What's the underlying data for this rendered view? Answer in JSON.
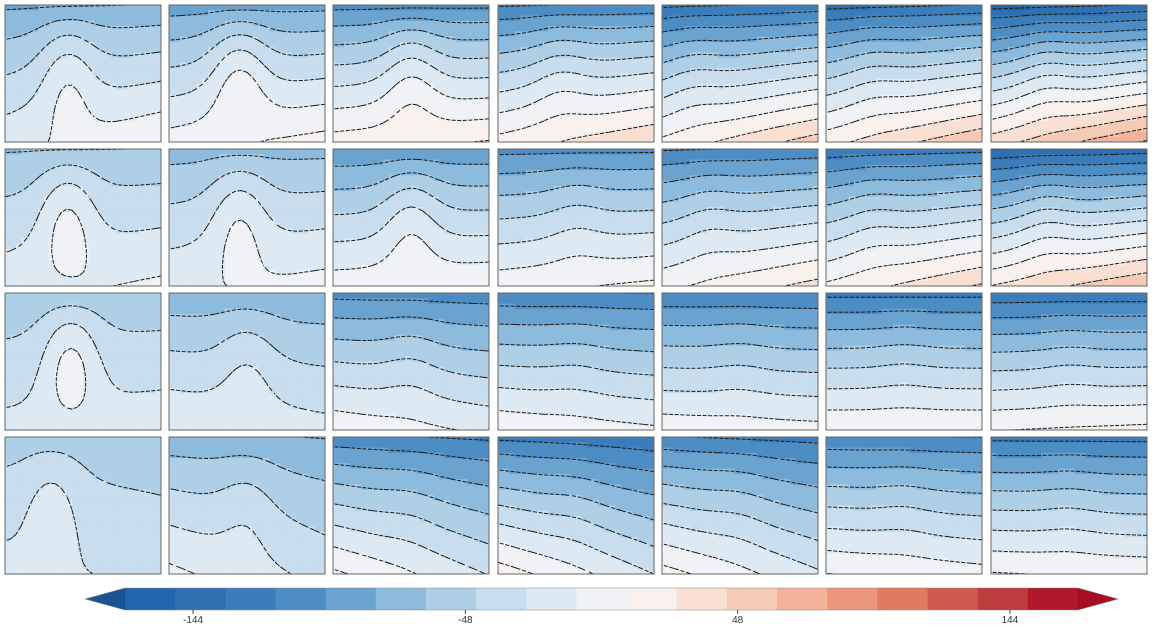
{
  "chart_data": {
    "type": "heatmap",
    "description_grid": {
      "rows": 4,
      "cols": 7
    },
    "panels_field_range": [
      -168,
      168
    ],
    "contour_style": "dashed-black",
    "colorbar": {
      "orientation": "horizontal",
      "extend": "both",
      "range": [
        -192,
        192
      ],
      "step": 24,
      "tick_values": [
        -144,
        -48,
        48,
        144
      ],
      "tick_labels": [
        "-144",
        "-48",
        "48",
        "144"
      ],
      "colors": [
        "#2166ac",
        "#3070b1",
        "#3a7dba",
        "#4d8dc4",
        "#6aa2d0",
        "#8dbbdd",
        "#aecfe6",
        "#c8dded",
        "#dde9f3",
        "#f0f2f5",
        "#f8f1ee",
        "#f9e0d3",
        "#f6cbb6",
        "#f2b39a",
        "#ec967b",
        "#e07b62",
        "#d05a4e",
        "#bd3c3d",
        "#b2182b"
      ],
      "extend_colors": {
        "low": "#1a5296",
        "high": "#a50f25"
      }
    },
    "panels": [
      [
        {
          "top": -50,
          "bottom": 55,
          "slope": 0.2,
          "dip": 35,
          "dip_pos": 0.4
        },
        {
          "top": -60,
          "bottom": 70,
          "slope": 0.15,
          "dip": 40,
          "dip_pos": 0.45
        },
        {
          "top": -80,
          "bottom": 90,
          "slope": 0.1,
          "dip": 30,
          "dip_pos": 0.5
        },
        {
          "top": -95,
          "bottom": 100,
          "slope": 0.25,
          "dip": 15,
          "dip_pos": 0.4
        },
        {
          "top": -120,
          "bottom": 105,
          "slope": 0.35,
          "dip": 10,
          "dip_pos": 0.2
        },
        {
          "top": -125,
          "bottom": 115,
          "slope": 0.35,
          "dip": 10,
          "dip_pos": 0.3
        },
        {
          "top": -150,
          "bottom": 140,
          "slope": 0.4,
          "dip": 15,
          "dip_pos": 0.35
        }
      ],
      [
        {
          "top": -25,
          "bottom": 45,
          "slope": 0.1,
          "dip": 40,
          "dip_pos": 0.4
        },
        {
          "top": -35,
          "bottom": 50,
          "slope": 0.1,
          "dip": 35,
          "dip_pos": 0.45
        },
        {
          "top": -70,
          "bottom": 65,
          "slope": 0.05,
          "dip": 30,
          "dip_pos": 0.5
        },
        {
          "top": -80,
          "bottom": 70,
          "slope": 0.1,
          "dip": 10,
          "dip_pos": 0.5
        },
        {
          "top": -95,
          "bottom": 85,
          "slope": 0.25,
          "dip": 10,
          "dip_pos": 0.3
        },
        {
          "top": -110,
          "bottom": 100,
          "slope": 0.3,
          "dip": 10,
          "dip_pos": 0.3
        },
        {
          "top": -140,
          "bottom": 120,
          "slope": 0.3,
          "dip": 15,
          "dip_pos": 0.35
        }
      ],
      [
        {
          "top": -20,
          "bottom": 35,
          "slope": 0.05,
          "dip": 45,
          "dip_pos": 0.42
        },
        {
          "top": -45,
          "bottom": 40,
          "slope": -0.1,
          "dip": 20,
          "dip_pos": 0.5
        },
        {
          "top": -85,
          "bottom": 55,
          "slope": -0.15,
          "dip": 10,
          "dip_pos": 0.5
        },
        {
          "top": -95,
          "bottom": 60,
          "slope": -0.1,
          "dip": 5,
          "dip_pos": 0.5
        },
        {
          "top": -95,
          "bottom": 60,
          "slope": -0.05,
          "dip": 5,
          "dip_pos": 0.5
        },
        {
          "top": -105,
          "bottom": 70,
          "slope": 0.0,
          "dip": 5,
          "dip_pos": 0.5
        },
        {
          "top": -115,
          "bottom": 75,
          "slope": 0.05,
          "dip": 5,
          "dip_pos": 0.5
        }
      ],
      [
        {
          "top": -15,
          "bottom": 25,
          "slope": -0.1,
          "dip": 25,
          "dip_pos": 0.3
        },
        {
          "top": -45,
          "bottom": 35,
          "slope": -0.25,
          "dip": 15,
          "dip_pos": 0.5
        },
        {
          "top": -95,
          "bottom": 50,
          "slope": -0.35,
          "dip": 5,
          "dip_pos": 0.5
        },
        {
          "top": -110,
          "bottom": 55,
          "slope": -0.4,
          "dip": 5,
          "dip_pos": 0.5
        },
        {
          "top": -100,
          "bottom": 55,
          "slope": -0.35,
          "dip": 5,
          "dip_pos": 0.5
        },
        {
          "top": -95,
          "bottom": 65,
          "slope": -0.1,
          "dip": 5,
          "dip_pos": 0.5
        },
        {
          "top": -105,
          "bottom": 70,
          "slope": -0.05,
          "dip": 5,
          "dip_pos": 0.5
        }
      ]
    ]
  }
}
